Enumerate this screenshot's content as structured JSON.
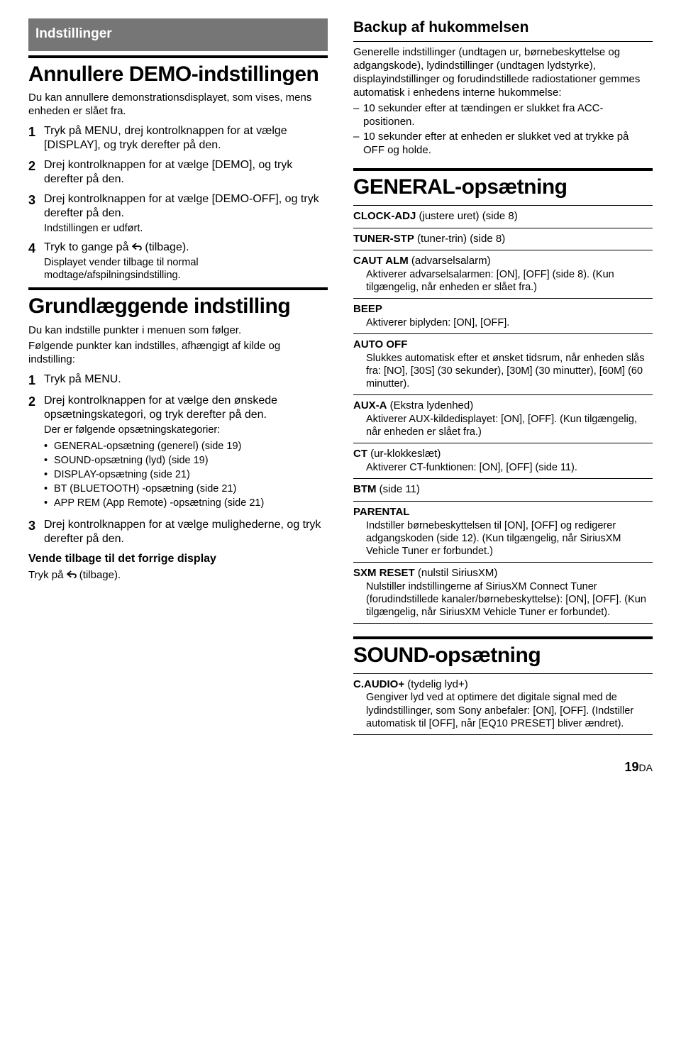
{
  "left": {
    "sectionLabel": "Indstillinger",
    "h1a": "Annullere DEMO-indstillingen",
    "intro1": "Du kan annullere demonstrationsdisplayet, som vises, mens enheden er slået fra.",
    "steps1": [
      {
        "n": "1",
        "lead": "Tryk på MENU, drej kontrolknappen for at vælge [DISPLAY], og tryk derefter på den."
      },
      {
        "n": "2",
        "lead": "Drej kontrolknappen for at vælge [DEMO], og tryk derefter på den."
      },
      {
        "n": "3",
        "lead": "Drej kontrolknappen for at vælge [DEMO-OFF], og tryk derefter på den.",
        "sub": "Indstillingen er udført."
      },
      {
        "n": "4",
        "leadPre": "Tryk to gange på ",
        "leadPost": " (tilbage).",
        "sub": "Displayet vender tilbage til normal modtage/afspilningsindstilling."
      }
    ],
    "h1b": "Grundlæggende indstilling",
    "intro2a": "Du kan indstille punkter i menuen som følger.",
    "intro2b": "Følgende punkter kan indstilles, afhængigt af kilde og indstilling:",
    "steps2": [
      {
        "n": "1",
        "lead": "Tryk på MENU."
      },
      {
        "n": "2",
        "lead": "Drej kontrolknappen for at vælge den ønskede opsætningskategori, og tryk derefter på den.",
        "subIntro": "Der er følgende opsætningskategorier:",
        "bullets": [
          "GENERAL-opsætning (generel) (side 19)",
          "SOUND-opsætning (lyd) (side 19)",
          "DISPLAY-opsætning (side 21)",
          "BT (BLUETOOTH) -opsætning (side 21)",
          "APP REM (App Remote) -opsætning (side 21)"
        ]
      },
      {
        "n": "3",
        "lead": "Drej kontrolknappen for at vælge mulighederne, og tryk derefter på den."
      }
    ],
    "back": {
      "title": "Vende tilbage til det forrige display",
      "textPre": "Tryk på ",
      "textPost": " (tilbage)."
    }
  },
  "right": {
    "backupTitle": "Backup af hukommelsen",
    "backupBody": "Generelle indstillinger (undtagen ur, børnebeskyttelse og adgangskode), lydindstillinger (undtagen lydstyrke), displayindstillinger og forudindstillede radiostationer gemmes automatisk i enhedens interne hukommelse:",
    "backupDashes": [
      "10 sekunder efter at tændingen er slukket fra ACC-positionen.",
      "10 sekunder efter at enheden er slukket ved at trykke på OFF og holde."
    ],
    "h1c": "GENERAL-opsætning",
    "general": [
      {
        "title": "CLOCK-ADJ",
        "titleExtra": " (justere uret) (side 8)"
      },
      {
        "title": "TUNER-STP",
        "titleExtra": " (tuner-trin) (side 8)"
      },
      {
        "title": "CAUT ALM",
        "titleExtra": " (advarselsalarm)",
        "desc": "Aktiverer advarselsalarmen: [ON], [OFF] (side 8). (Kun tilgængelig, når enheden er slået fra.)"
      },
      {
        "title": "BEEP",
        "desc": "Aktiverer biplyden: [ON], [OFF]."
      },
      {
        "title": "AUTO OFF",
        "desc": "Slukkes automatisk efter et ønsket tidsrum, når enheden slås fra: [NO], [30S] (30 sekunder), [30M] (30 minutter), [60M] (60 minutter)."
      },
      {
        "title": "AUX-A",
        "titleExtra": " (Ekstra lydenhed)",
        "desc": "Aktiverer AUX-kildedisplayet: [ON], [OFF]. (Kun tilgængelig, når enheden er slået fra.)"
      },
      {
        "title": "CT",
        "titleExtra": " (ur-klokkeslæt)",
        "desc": "Aktiverer CT-funktionen: [ON], [OFF] (side 11)."
      },
      {
        "title": "BTM",
        "titleExtra": " (side 11)"
      },
      {
        "title": "PARENTAL",
        "desc": "Indstiller børnebeskyttelsen til [ON], [OFF] og redigerer adgangskoden (side 12). (Kun tilgængelig, når SiriusXM Vehicle Tuner er forbundet.)"
      },
      {
        "title": "SXM RESET",
        "titleExtra": " (nulstil SiriusXM)",
        "desc": "Nulstiller indstillingerne af SiriusXM Connect Tuner (forudindstillede kanaler/børnebeskyttelse): [ON], [OFF]. (Kun tilgængelig, når SiriusXM Vehicle Tuner er forbundet)."
      }
    ],
    "h1d": "SOUND-opsætning",
    "sound": [
      {
        "title": "C.AUDIO+",
        "titleExtra": " (tydelig lyd+)",
        "desc": "Gengiver lyd ved at optimere det digitale signal med de lydindstillinger, som Sony anbefaler: [ON], [OFF]. (Indstiller automatisk til [OFF], når [EQ10 PRESET] bliver ændret)."
      }
    ]
  },
  "pageNum": "19",
  "pageSuffix": "DA"
}
